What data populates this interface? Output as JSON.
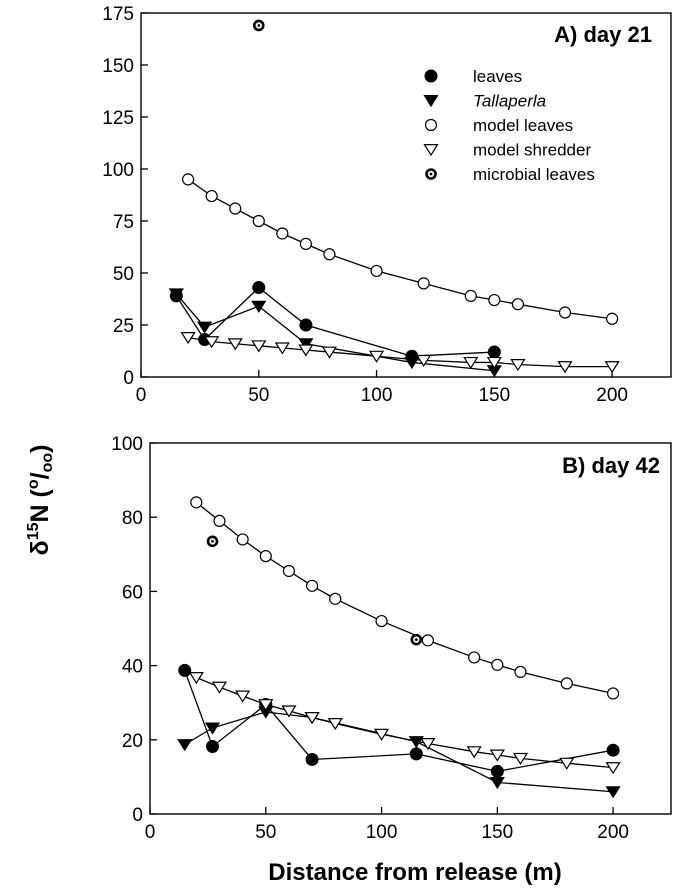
{
  "chart_data": [
    {
      "type": "line",
      "title": "A) day 21",
      "xlabel": "Distance from release (m)",
      "ylabel": "δ15N (‰)",
      "xlim": [
        0,
        225
      ],
      "ylim": [
        0,
        175
      ],
      "xticks": [
        0,
        50,
        100,
        150,
        200
      ],
      "yticks": [
        0,
        25,
        50,
        75,
        100,
        125,
        150,
        175
      ],
      "legend_placement": "top-right",
      "series": [
        {
          "name": "leaves",
          "marker": "filled-circle",
          "line": true,
          "x": [
            15,
            27,
            50,
            70,
            115,
            150
          ],
          "y": [
            39,
            18,
            43,
            25,
            10,
            12
          ]
        },
        {
          "name": "Tallaperla",
          "marker": "filled-triangle-down",
          "line": true,
          "x": [
            15,
            27,
            50,
            70,
            115,
            150
          ],
          "y": [
            40,
            24,
            34,
            16,
            7,
            3
          ]
        },
        {
          "name": "model leaves",
          "marker": "open-circle",
          "line": true,
          "x": [
            20,
            30,
            40,
            50,
            60,
            70,
            80,
            100,
            120,
            140,
            150,
            160,
            180,
            200
          ],
          "y": [
            95,
            87,
            81,
            75,
            69,
            64,
            59,
            51,
            45,
            39,
            37,
            35,
            31,
            28
          ]
        },
        {
          "name": "model shredder",
          "marker": "open-triangle-down",
          "line": true,
          "x": [
            20,
            30,
            40,
            50,
            60,
            70,
            80,
            100,
            120,
            140,
            150,
            160,
            180,
            200
          ],
          "y": [
            19,
            17,
            16,
            15,
            14,
            13,
            12,
            10,
            8,
            7,
            7,
            6,
            5,
            5
          ]
        },
        {
          "name": "microbial leaves",
          "marker": "dotted-circle",
          "line": false,
          "x": [
            50
          ],
          "y": [
            169
          ]
        }
      ]
    },
    {
      "type": "line",
      "title": "B) day 42",
      "xlabel": "Distance from release (m)",
      "ylabel": "δ15N (‰)",
      "xlim": [
        0,
        225
      ],
      "ylim": [
        0,
        100
      ],
      "xticks": [
        0,
        50,
        100,
        150,
        200
      ],
      "yticks": [
        0,
        20,
        40,
        60,
        80,
        100
      ],
      "series": [
        {
          "name": "leaves",
          "marker": "filled-circle",
          "line": true,
          "x": [
            15,
            27,
            50,
            70,
            115,
            150,
            200
          ],
          "y": [
            38.7,
            18.2,
            29.5,
            14.7,
            16.2,
            11.5,
            17.2
          ]
        },
        {
          "name": "Tallaperla",
          "marker": "filled-triangle-down",
          "line": true,
          "x": [
            15,
            27,
            50,
            70,
            115,
            150,
            200
          ],
          "y": [
            18.7,
            23.2,
            27.5,
            26,
            19.5,
            8.5,
            6
          ]
        },
        {
          "name": "model leaves",
          "marker": "open-circle",
          "line": true,
          "x": [
            20,
            30,
            40,
            50,
            60,
            70,
            80,
            100,
            120,
            140,
            150,
            160,
            180,
            200
          ],
          "y": [
            84,
            79,
            74,
            69.5,
            65.5,
            61.5,
            58,
            52,
            46.8,
            42.2,
            40.2,
            38.3,
            35.2,
            32.5
          ]
        },
        {
          "name": "model shredder",
          "marker": "open-triangle-down",
          "line": true,
          "x": [
            20,
            30,
            40,
            50,
            60,
            70,
            80,
            100,
            120,
            140,
            150,
            160,
            180,
            200
          ],
          "y": [
            36.8,
            34.2,
            31.8,
            29.5,
            27.8,
            26,
            24.4,
            21.5,
            19,
            16.8,
            15.9,
            15,
            13.7,
            12.5
          ]
        },
        {
          "name": "microbial leaves",
          "marker": "dotted-circle",
          "line": false,
          "x": [
            27,
            115
          ],
          "y": [
            73.5,
            47
          ]
        }
      ]
    }
  ]
}
